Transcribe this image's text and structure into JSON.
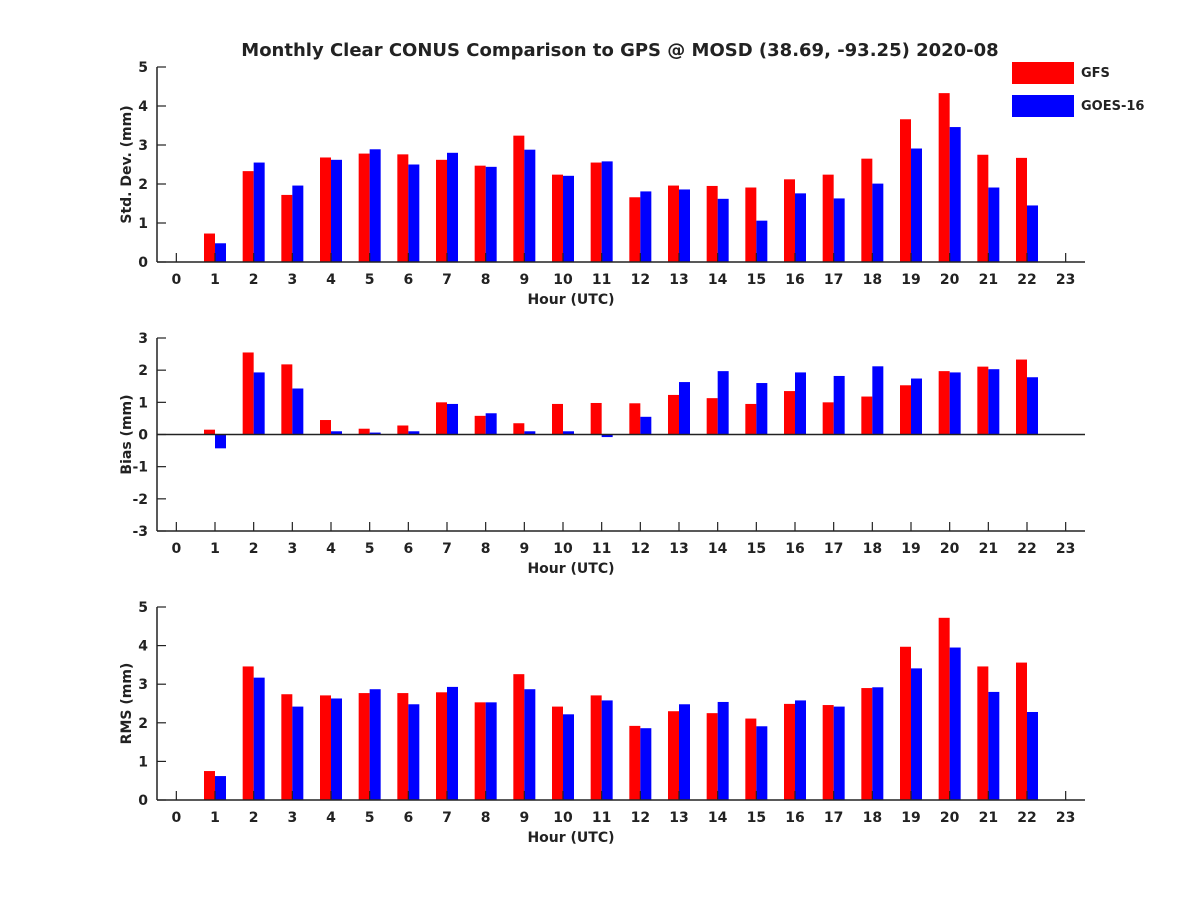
{
  "figure_title": "Monthly Clear CONUS Comparison to GPS @ MOSD (38.69, -93.25) 2020-08",
  "legend": {
    "items": [
      {
        "label": "GFS",
        "color": "#ff0000"
      },
      {
        "label": "GOES-16",
        "color": "#0000ff"
      }
    ]
  },
  "chart_data": [
    {
      "type": "bar",
      "title": "Monthly Clear CONUS Comparison to GPS @ MOSD (38.69, -93.25) 2020-08",
      "xlabel": "Hour (UTC)",
      "ylabel": "Std. Dev. (mm)",
      "xlim": [
        -0.5,
        23.5
      ],
      "ylim": [
        0,
        5
      ],
      "yticks": [
        0,
        1,
        2,
        3,
        4,
        5
      ],
      "categories": [
        "0",
        "1",
        "2",
        "3",
        "4",
        "5",
        "6",
        "7",
        "8",
        "9",
        "10",
        "11",
        "12",
        "13",
        "14",
        "15",
        "16",
        "17",
        "18",
        "19",
        "20",
        "21",
        "22",
        "23"
      ],
      "series": [
        {
          "name": "GFS",
          "color": "#ff0000",
          "values": [
            null,
            0.73,
            2.33,
            1.72,
            2.68,
            2.78,
            2.76,
            2.62,
            2.47,
            3.24,
            2.24,
            2.55,
            1.66,
            1.96,
            1.95,
            1.91,
            2.12,
            2.24,
            2.65,
            3.66,
            4.33,
            2.75,
            2.67,
            null
          ]
        },
        {
          "name": "GOES-16",
          "color": "#0000ff",
          "values": [
            null,
            0.48,
            2.55,
            1.96,
            2.62,
            2.89,
            2.5,
            2.8,
            2.44,
            2.88,
            2.21,
            2.58,
            1.81,
            1.86,
            1.62,
            1.06,
            1.76,
            1.63,
            2.01,
            2.91,
            3.46,
            1.91,
            1.45,
            null
          ]
        }
      ],
      "grid": false,
      "legend_position": "top-right"
    },
    {
      "type": "bar",
      "xlabel": "Hour (UTC)",
      "ylabel": "Bias (mm)",
      "xlim": [
        -0.5,
        23.5
      ],
      "ylim": [
        -3,
        3
      ],
      "yticks": [
        -3,
        -2,
        -1,
        0,
        1,
        2,
        3
      ],
      "categories": [
        "0",
        "1",
        "2",
        "3",
        "4",
        "5",
        "6",
        "7",
        "8",
        "9",
        "10",
        "11",
        "12",
        "13",
        "14",
        "15",
        "16",
        "17",
        "18",
        "19",
        "20",
        "21",
        "22",
        "23"
      ],
      "series": [
        {
          "name": "GFS",
          "color": "#ff0000",
          "values": [
            null,
            0.15,
            2.55,
            2.18,
            0.45,
            0.18,
            0.28,
            1.0,
            0.58,
            0.35,
            0.95,
            0.98,
            0.97,
            1.23,
            1.13,
            0.95,
            1.35,
            1.0,
            1.18,
            1.53,
            1.97,
            2.11,
            2.33,
            null
          ]
        },
        {
          "name": "GOES-16",
          "color": "#0000ff",
          "values": [
            null,
            -0.43,
            1.93,
            1.43,
            0.1,
            0.06,
            0.1,
            0.95,
            0.66,
            0.1,
            0.1,
            -0.08,
            0.55,
            1.63,
            1.97,
            1.6,
            1.93,
            1.82,
            2.12,
            1.74,
            1.93,
            2.03,
            1.78,
            null
          ]
        }
      ],
      "grid": false
    },
    {
      "type": "bar",
      "xlabel": "Hour (UTC)",
      "ylabel": "RMS (mm)",
      "xlim": [
        -0.5,
        23.5
      ],
      "ylim": [
        0,
        5
      ],
      "yticks": [
        0,
        1,
        2,
        3,
        4,
        5
      ],
      "categories": [
        "0",
        "1",
        "2",
        "3",
        "4",
        "5",
        "6",
        "7",
        "8",
        "9",
        "10",
        "11",
        "12",
        "13",
        "14",
        "15",
        "16",
        "17",
        "18",
        "19",
        "20",
        "21",
        "22",
        "23"
      ],
      "series": [
        {
          "name": "GFS",
          "color": "#ff0000",
          "values": [
            null,
            0.75,
            3.46,
            2.74,
            2.71,
            2.77,
            2.77,
            2.79,
            2.53,
            3.26,
            2.42,
            2.71,
            1.92,
            2.3,
            2.25,
            2.11,
            2.49,
            2.46,
            2.9,
            3.97,
            4.72,
            3.46,
            3.56,
            null
          ]
        },
        {
          "name": "GOES-16",
          "color": "#0000ff",
          "values": [
            null,
            0.62,
            3.17,
            2.42,
            2.63,
            2.87,
            2.48,
            2.93,
            2.53,
            2.87,
            2.22,
            2.58,
            1.86,
            2.48,
            2.54,
            1.91,
            2.58,
            2.42,
            2.92,
            3.41,
            3.95,
            2.8,
            2.28,
            null
          ]
        }
      ],
      "grid": false
    }
  ]
}
